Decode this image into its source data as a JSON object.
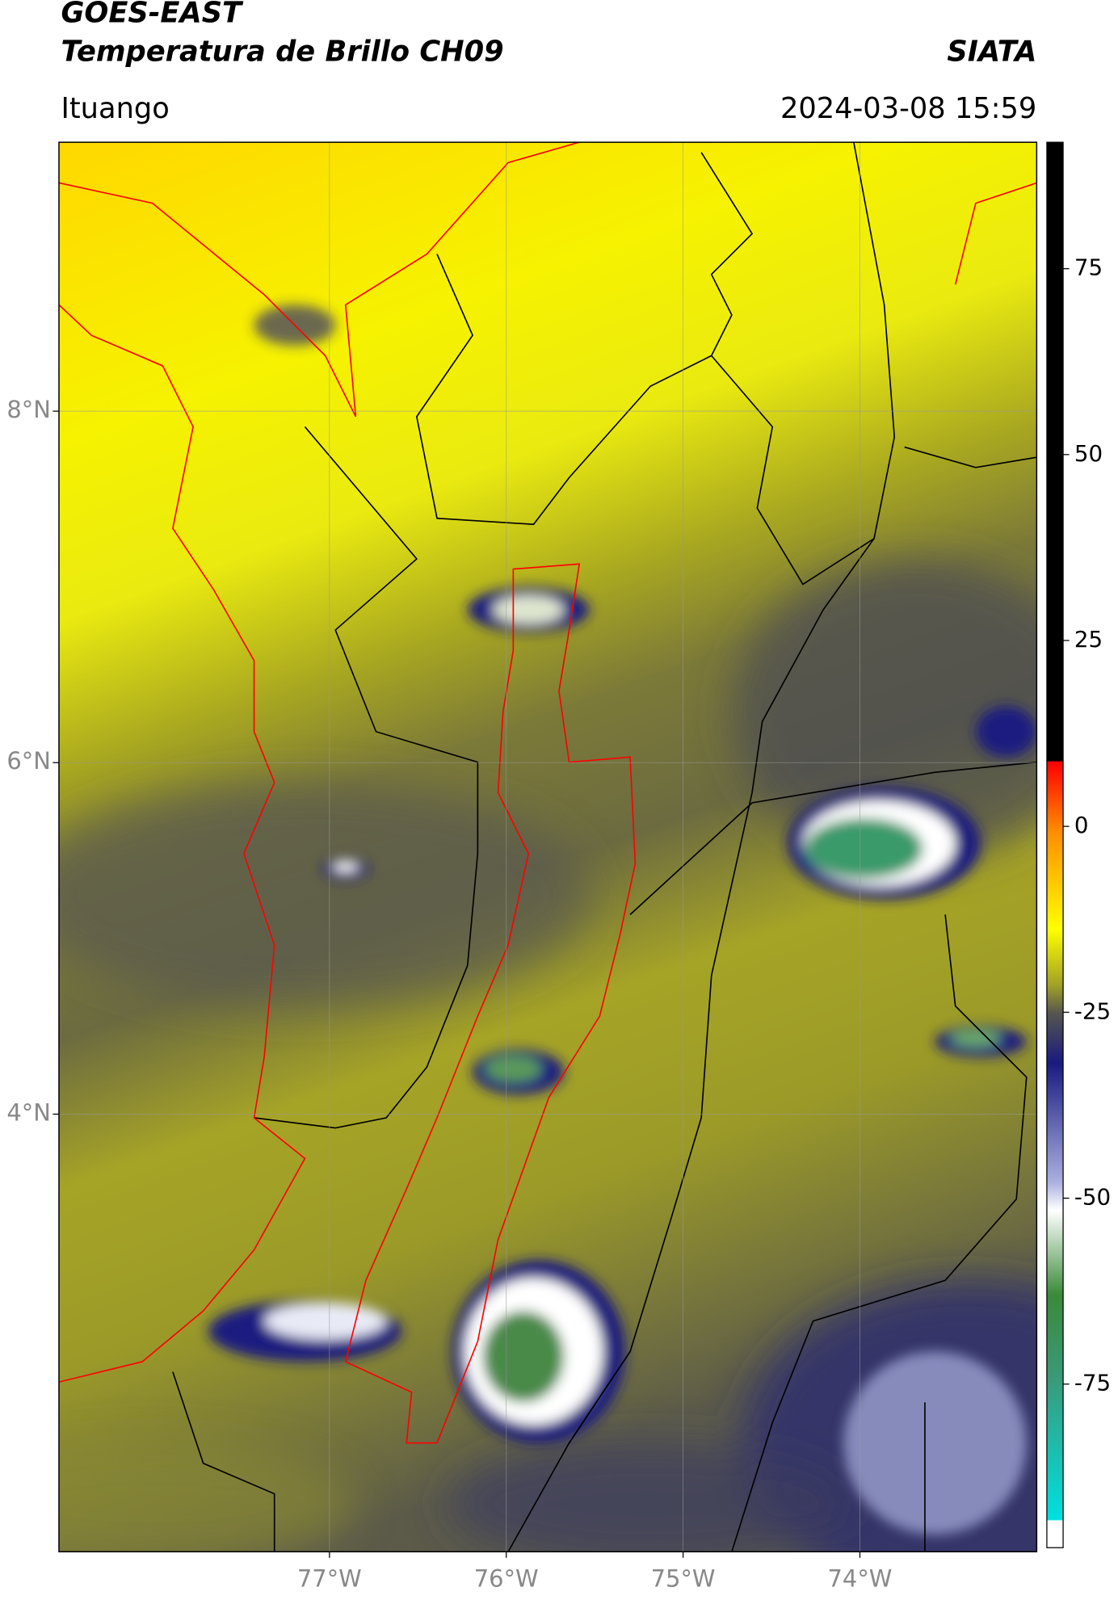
{
  "header": {
    "title": "GOES-EAST",
    "subtitle": "Temperatura de Brillo CH09",
    "source": "SIATA",
    "location": "Ituango",
    "datetime": "2024-03-08 15:59"
  },
  "map": {
    "lonlim": [
      -78.53,
      -73.0
    ],
    "latlim": [
      1.51,
      9.53
    ],
    "xticks": [
      {
        "value": -77,
        "label": "77°W"
      },
      {
        "value": -76,
        "label": "76°W"
      },
      {
        "value": -75,
        "label": "75°W"
      },
      {
        "value": -74,
        "label": "74°W"
      }
    ],
    "yticks": [
      {
        "value": 8,
        "label": "8°N"
      },
      {
        "value": 6,
        "label": "6°N"
      },
      {
        "value": 4,
        "label": "4°N"
      }
    ],
    "grid": true
  },
  "colorbar": {
    "lim": [
      -97,
      92
    ],
    "ticks": [
      75,
      50,
      25,
      0,
      -25,
      -50,
      -75
    ]
  }
}
